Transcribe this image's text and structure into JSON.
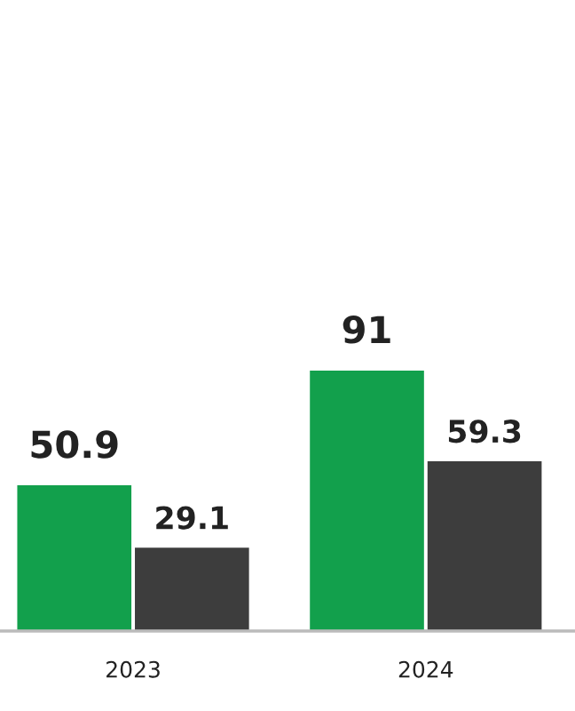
{
  "chart_data": {
    "type": "bar",
    "categories": [
      "2023",
      "2024"
    ],
    "series": [
      {
        "color": "#12a04c",
        "values": [
          50.9,
          91
        ]
      },
      {
        "color": "#3d3d3d",
        "values": [
          29.1,
          59.3
        ]
      }
    ],
    "data_labels": true,
    "grid": false
  }
}
